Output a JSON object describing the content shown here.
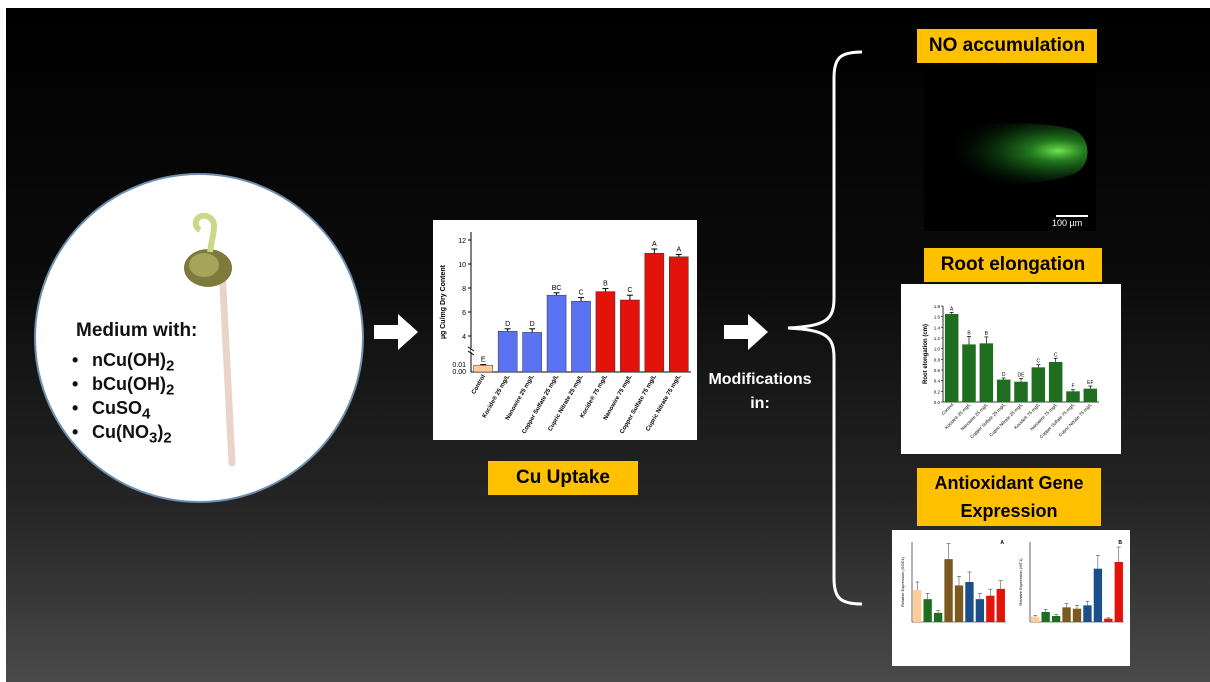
{
  "medium": {
    "title": "Medium with:",
    "items": [
      {
        "base": "nCu(OH)",
        "sub": "2",
        "rest": ""
      },
      {
        "base": "bCu(OH)",
        "sub": "2",
        "rest": ""
      },
      {
        "base": "CuSO",
        "sub": "4",
        "rest": ""
      },
      {
        "base": "Cu(NO",
        "sub": "3",
        "rest": ")",
        "sub2": "2"
      }
    ]
  },
  "labels": {
    "cu_uptake": "Cu Uptake",
    "modifications_line1": "Modifications",
    "modifications_line2": "in:",
    "no_accumulation": "NO accumulation",
    "root_elongation": "Root elongation",
    "antioxidant_line1": "Antioxidant Gene",
    "antioxidant_line2": "Expression",
    "scale_bar": "100 µm"
  },
  "colors": {
    "label_bg": "#ffc000",
    "blue": "#5b72f2",
    "red": "#e3120b",
    "peach": "#ffcc99",
    "green": "#1f6e1f"
  },
  "chart_data": [
    {
      "type": "bar",
      "ylabel": "µg Cu/mg Dry Content",
      "categories": [
        "Control",
        "Kocide® 25 mg/L",
        "Nanowire 25 mg/L",
        "Copper Sulfate 25 mg/L",
        "Cupric Nitrate 25 mg/L",
        "Kocide® 75 mg/L",
        "Nanowire 75 mg/L",
        "Copper Sulfate 75 mg/L",
        "Cupric Nitrate 75 mg/L"
      ],
      "values": [
        0.008,
        4.4,
        4.3,
        7.4,
        6.9,
        7.7,
        7.0,
        10.9,
        10.6
      ],
      "errors": [
        0.001,
        0.2,
        0.3,
        0.2,
        0.3,
        0.25,
        0.4,
        0.35,
        0.2
      ],
      "letters": [
        "E",
        "D",
        "D",
        "BC",
        "C",
        "B",
        "C",
        "A",
        "A"
      ],
      "bar_colors": [
        "#ffcc99",
        "#5b72f2",
        "#5b72f2",
        "#5b72f2",
        "#5b72f2",
        "#e3120b",
        "#e3120b",
        "#e3120b",
        "#e3120b"
      ],
      "yticks": [
        "12",
        "10",
        "8",
        "6",
        "4",
        "0.01",
        "0.00"
      ],
      "axis_break": true
    },
    {
      "type": "bar",
      "ylabel": "Root elongation (cm)",
      "categories": [
        "Control",
        "Kocide® 25 mg/L",
        "Nanowire 25 mg/L",
        "Copper Sulfate 25 mg/L",
        "Cupric Nitrate 25 mg/L",
        "Kocide® 75 mg/L",
        "Nanowire 75 mg/L",
        "Copper Sulfate 75 mg/L",
        "Cupric Nitrate 75 mg/L"
      ],
      "values": [
        1.65,
        1.08,
        1.1,
        0.42,
        0.38,
        0.65,
        0.75,
        0.2,
        0.25
      ],
      "errors": [
        0.03,
        0.15,
        0.12,
        0.03,
        0.06,
        0.05,
        0.07,
        0.03,
        0.05
      ],
      "letters": [
        "A",
        "B",
        "B",
        "D",
        "DE",
        "C",
        "C",
        "F",
        "EF"
      ],
      "yticks": [
        "1.8",
        "1.6",
        "1.4",
        "1.2",
        "1.0",
        "0.8",
        "0.6",
        "0.4",
        "0.2",
        "0.0"
      ],
      "ylim": [
        0,
        1.8
      ]
    },
    {
      "type": "bar",
      "panel": "A",
      "ylabel": "Relative Expression (SOD1)",
      "values": [
        2.8,
        2.0,
        0.8,
        5.5,
        3.2,
        3.5,
        2.0,
        2.3,
        2.9
      ],
      "bar_colors": [
        "#ffcc99",
        "#1f6e1f",
        "#1f6e1f",
        "#7a5a1e",
        "#7a5a1e",
        "#1b4f8a",
        "#1b4f8a",
        "#e3120b",
        "#e3120b"
      ]
    },
    {
      "type": "bar",
      "panel": "B",
      "ylabel": "Relative Expression (MT1)",
      "values": [
        0.8,
        1.5,
        0.9,
        2.2,
        2.0,
        2.5,
        8.0,
        0.5,
        9.0
      ],
      "bar_colors": [
        "#ffcc99",
        "#1f6e1f",
        "#1f6e1f",
        "#7a5a1e",
        "#7a5a1e",
        "#1b4f8a",
        "#1b4f8a",
        "#e3120b",
        "#e3120b"
      ]
    }
  ]
}
